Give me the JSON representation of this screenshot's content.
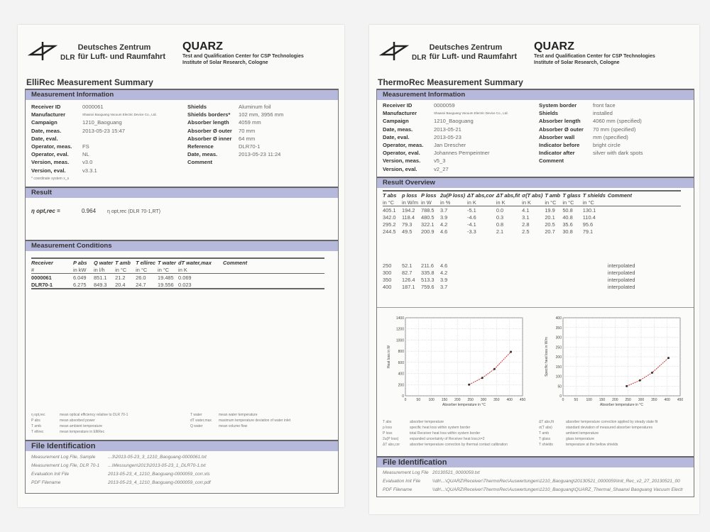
{
  "header": {
    "org_line1": "Deutsches Zentrum",
    "org_line2": "für Luft- und Raumfahrt",
    "dlr": "DLR",
    "quarz": "QUARZ",
    "quarz_line1": "Test and Qualification Center for CSP Technologies",
    "quarz_line2": "Institute of Solar Research, Cologne"
  },
  "left": {
    "title": "ElliRec Measurement Summary",
    "mi_title": "Measurement Information",
    "mi_left": [
      [
        "Receiver ID",
        "0000061"
      ],
      [
        "Manufacturer",
        "Shaanxi Baoguang Vacuum Electric Device Co., Ltd."
      ],
      [
        "Campaign",
        "1210_Baoguang"
      ],
      [
        "Date, meas.",
        "2013-05-23 15:47"
      ],
      [
        "Date, eval.",
        ""
      ],
      [
        "Operator, meas.",
        "FS"
      ],
      [
        "Operator, eval.",
        "NL"
      ],
      [
        "Version, meas.",
        "v3.0"
      ],
      [
        "Version, eval.",
        "v3.3.1"
      ]
    ],
    "mi_right": [
      [
        "Shields",
        "Aluminum foil"
      ],
      [
        "Shields borders*",
        "102      mm,        3956       mm"
      ],
      [
        "Absorber length",
        "4059     mm"
      ],
      [
        "Absorber Ø outer",
        "70       mm"
      ],
      [
        "Absorber Ø inner",
        "64       mm"
      ],
      [
        "Reference",
        "DLR70-1"
      ],
      [
        "Date, meas.",
        "2013-05-23 11:24"
      ],
      [
        "Comment",
        ""
      ]
    ],
    "footnote": "* coordinate system x_s",
    "result_title": "Result",
    "result_label": "η opt,rec =",
    "result_value": "0.964",
    "result_ref": "η opt,rec (DLR 70-1,RT)",
    "mc_title": "Measurement Conditions",
    "mc_head": [
      "Receiver",
      "P abs",
      "Q water",
      "T amb",
      "T ellirec",
      "T water",
      "dT water,max",
      "Comment"
    ],
    "mc_units": [
      "#",
      "in kW",
      "in l/h",
      "in °C",
      "in °C",
      "in °C",
      "in K",
      ""
    ],
    "mc_rows": [
      [
        "0000061",
        "6.049",
        "851.1",
        "21.2",
        "26.0",
        "19.485",
        "0.069",
        ""
      ],
      [
        "DLR70-1",
        "6.275",
        "849.3",
        "20.4",
        "24.7",
        "19.556",
        "0.023",
        ""
      ]
    ],
    "legend": [
      [
        "η opt,rec",
        "mean optical efficiency relative to DLR 70-1"
      ],
      [
        "P abs",
        "mean absorbed power"
      ],
      [
        "T amb",
        "mean ambient temperature"
      ],
      [
        "T ellirec",
        "mean temperature in ElliRec"
      ]
    ],
    "legend2": [
      [
        "T water",
        "mean water temperature"
      ],
      [
        "dT water,max",
        "maximum temperature deviation of water inlet"
      ],
      [
        "Q water",
        "mean volume flow"
      ]
    ],
    "file_title": "File Identification",
    "files": [
      [
        "Measurement Log File, Sample",
        "...3\\2013-05-23_3_1210_Baoguang-0000061.txt"
      ],
      [
        "Measurement Log File, DLR 70-1",
        "...\\Messungen\\2013\\2013-05-23_1_DLR70-1.txt"
      ],
      [
        "Evaluation Init File",
        "2013-05-23_4_1210_Baoguang-0000059_corr.xls"
      ],
      [
        "PDF Filename",
        "2013-05-23_4_1210_Baoguang-0000059_corr.pdf"
      ]
    ]
  },
  "right": {
    "title": "ThermoRec Measurement Summary",
    "mi_title": "Measurement Information",
    "mi_left": [
      [
        "Receiver ID",
        "0000059"
      ],
      [
        "Manufacturer",
        "Shaanxi Baoguang Vacuum Electric Device Co., Ltd."
      ],
      [
        "Campaign",
        "1210_Baoguang"
      ],
      [
        "Date, meas.",
        "2013-05-21"
      ],
      [
        "Date, eval.",
        "2013-05-23"
      ],
      [
        "Operator, meas.",
        "Jan Drescher"
      ],
      [
        "Operator, eval.",
        "Johannes Pernpeintner"
      ],
      [
        "Version, meas.",
        "v5_3"
      ],
      [
        "Version, eval.",
        "v2_27"
      ]
    ],
    "mi_right": [
      [
        "System border",
        "front face"
      ],
      [
        "Shields",
        "installed"
      ],
      [
        "Absorber length",
        "4060      mm (specified)"
      ],
      [
        "Absorber Ø outer",
        "70        mm (specified)"
      ],
      [
        "Absorber wall",
        "              mm (specified)"
      ],
      [
        "Indicator before",
        "bright circle"
      ],
      [
        "Indicator after",
        "silver with dark spots"
      ],
      [
        "Comment",
        ""
      ]
    ],
    "ro_title": "Result Overview",
    "ro_head": [
      "T abs",
      "p loss",
      "P loss",
      "2u(P loss)",
      "ΔT abs,cor",
      "ΔT abs,fit",
      "σ(T abs)",
      "T amb",
      "T glass",
      "T shields",
      "Comment"
    ],
    "ro_units": [
      "in °C",
      "in W/m",
      "in W",
      "in %",
      "in K",
      "in K",
      "in K",
      "in °C",
      "in °C",
      "in °C",
      ""
    ],
    "ro_rows": [
      [
        "405.1",
        "194.2",
        "788.5",
        "3.7",
        "-5.1",
        "0.0",
        "4.1",
        "19.9",
        "50.8",
        "130.1",
        ""
      ],
      [
        "342.0",
        "118.4",
        "480.5",
        "3.9",
        "-4.6",
        "0.3",
        "3.1",
        "20.1",
        "40.8",
        "110.4",
        ""
      ],
      [
        "295.2",
        "79.3",
        "322.1",
        "4.2",
        "-4.1",
        "0.8",
        "2.8",
        "20.5",
        "35.6",
        "95.6",
        ""
      ],
      [
        "244.5",
        "49.5",
        "200.9",
        "4.6",
        "-3.3",
        "2.1",
        "2.5",
        "20.7",
        "30.8",
        "79.1",
        ""
      ]
    ],
    "ro_interp": [
      [
        "250",
        "52.1",
        "211.6",
        "4.6",
        "interpolated"
      ],
      [
        "300",
        "82.7",
        "335.8",
        "4.2",
        "interpolated"
      ],
      [
        "350",
        "126.4",
        "513.3",
        "3.9",
        "interpolated"
      ],
      [
        "400",
        "187.1",
        "759.6",
        "3.7",
        "interpolated"
      ]
    ],
    "legend": [
      [
        "T abs",
        "absorber temperature"
      ],
      [
        "p loss",
        "specific heat loss within system border"
      ],
      [
        "P loss",
        "total Receiver heat loss within system border"
      ],
      [
        "2u(P loss)",
        "expanded uncertainty of Receiver heat loss,k=2"
      ],
      [
        "ΔT abs,cor",
        "absorber temperature correction by thermal contact calibration"
      ]
    ],
    "legend2": [
      [
        "ΔT abs,fit",
        "absorber temperature correction applied by steady state fit"
      ],
      [
        "σ(T abs)",
        "standard deviation of measured absorber temperatures"
      ],
      [
        "T amb",
        "ambient temperature"
      ],
      [
        "T glass",
        "glass temperature"
      ],
      [
        "T shields",
        "temperature at the bellow shields"
      ]
    ],
    "file_title": "File Identification",
    "files": [
      [
        "Measurement Log File",
        "20130521_0000059.txt"
      ],
      [
        "Evaluation Init File",
        "\\\\dlr\\...\\QUARZ\\Receiver\\ThermoRec\\Auswertungen\\1210_Baoguang\\20130521_0000059\\Init_Rec_v2_27_20130521_00"
      ],
      [
        "PDF Filename",
        "\\\\dlr\\...\\QUARZ\\Receiver\\ThermoRec\\Auswertungen\\1210_Baoguang\\QUARZ_Thermal_Shaanxi Baoguang Vacuum Electr"
      ]
    ]
  },
  "chart_data": [
    {
      "type": "scatter",
      "xlabel": "Absorber temperature in °C",
      "ylabel": "Heat loss in W",
      "xlim": [
        0,
        450
      ],
      "ylim": [
        0,
        1400
      ],
      "xticks": [
        0,
        50,
        100,
        150,
        200,
        250,
        300,
        350,
        400,
        450
      ],
      "yticks": [
        0,
        200,
        400,
        600,
        800,
        1000,
        1200,
        1400
      ],
      "grid": true,
      "x": [
        244.5,
        295.2,
        342.0,
        405.1
      ],
      "y": [
        200.9,
        322.1,
        480.5,
        788.5
      ],
      "fit_color": "#cc3333"
    },
    {
      "type": "scatter",
      "xlabel": "Absorber temperature in °C",
      "ylabel": "Specific heat loss in W/m",
      "xlim": [
        0,
        450
      ],
      "ylim": [
        0,
        400
      ],
      "xticks": [
        0,
        50,
        100,
        150,
        200,
        250,
        300,
        350,
        400,
        450
      ],
      "yticks": [
        0,
        50,
        100,
        150,
        200,
        250,
        300,
        350,
        400
      ],
      "grid": true,
      "x": [
        244.5,
        295.2,
        342.0,
        405.1
      ],
      "y": [
        49.5,
        79.3,
        118.4,
        194.2
      ],
      "fit_color": "#cc3333"
    }
  ]
}
